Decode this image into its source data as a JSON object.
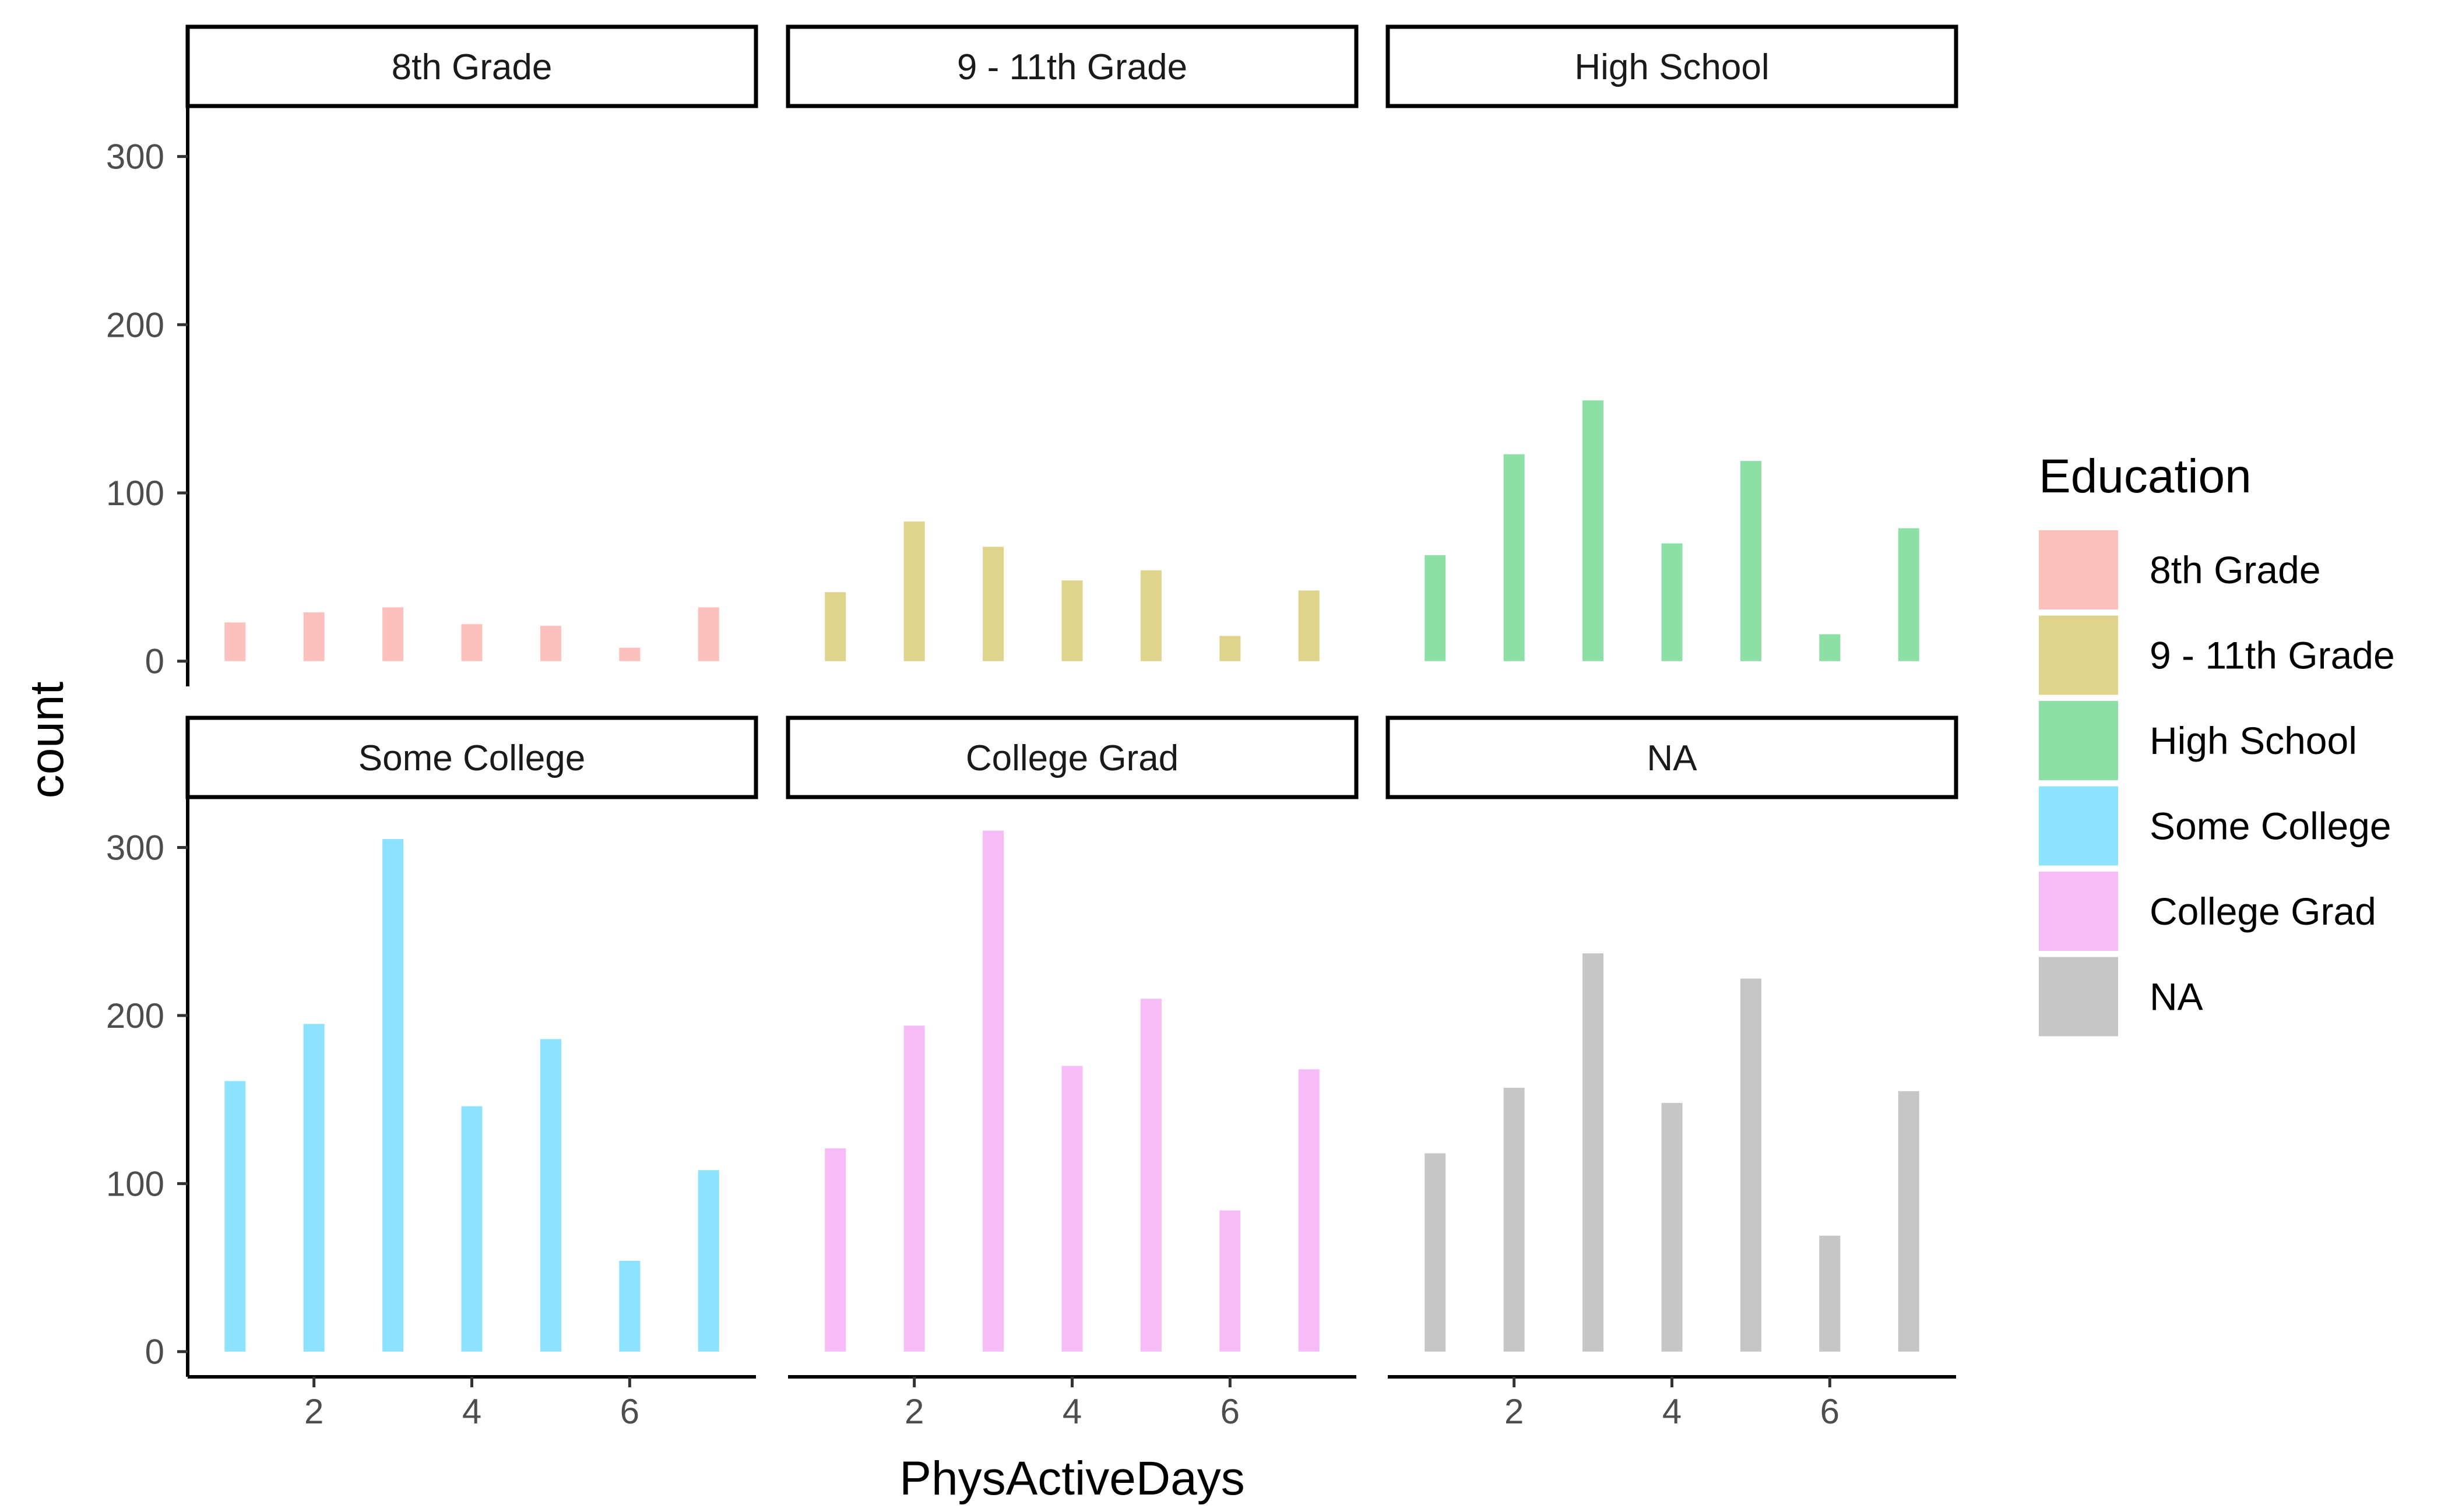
{
  "chart_data": {
    "type": "bar",
    "facet_layout": "2 rows x 3 columns, free y scale per row",
    "xlabel": "PhysActiveDays",
    "ylabel": "count",
    "x_ticks": [
      2,
      4,
      6
    ],
    "xlim": [
      0.4,
      7.6
    ],
    "row_ylim": [
      [
        -15,
        330
      ],
      [
        -15,
        330
      ]
    ],
    "y_ticks": [
      0,
      100,
      200,
      300
    ],
    "legend": {
      "title": "Education",
      "position": "right"
    },
    "grid": false,
    "series": [
      {
        "name": "8th Grade",
        "color": "#F8766D",
        "x": [
          1,
          2,
          3,
          4,
          5,
          6,
          7
        ],
        "values": [
          23,
          29,
          32,
          22,
          21,
          8,
          32
        ]
      },
      {
        "name": "9 - 11th Grade",
        "color": "#B79F00",
        "x": [
          1,
          2,
          3,
          4,
          5,
          6,
          7
        ],
        "values": [
          41,
          83,
          68,
          48,
          54,
          15,
          42
        ]
      },
      {
        "name": "High School",
        "color": "#00BA38",
        "x": [
          1,
          2,
          3,
          4,
          5,
          6,
          7
        ],
        "values": [
          63,
          123,
          155,
          70,
          119,
          16,
          79
        ]
      },
      {
        "name": "Some College",
        "color": "#00BFFF",
        "x": [
          1,
          2,
          3,
          4,
          5,
          6,
          7
        ],
        "values": [
          161,
          195,
          305,
          146,
          186,
          54,
          108
        ]
      },
      {
        "name": "College Grad",
        "color": "#E86BF0",
        "x": [
          1,
          2,
          3,
          4,
          5,
          6,
          7
        ],
        "values": [
          121,
          194,
          310,
          170,
          210,
          84,
          168
        ]
      },
      {
        "name": "NA",
        "color": "#808080",
        "x": [
          1,
          2,
          3,
          4,
          5,
          6,
          7
        ],
        "values": [
          118,
          157,
          237,
          148,
          222,
          69,
          155
        ]
      }
    ]
  }
}
